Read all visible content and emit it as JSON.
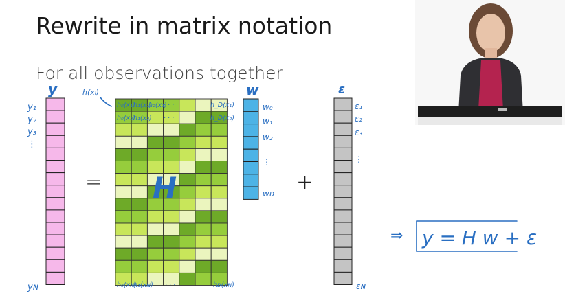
{
  "slide": {
    "title": "Rewrite in matrix notation",
    "subtitle": "For all observations together"
  },
  "vectors": {
    "y": {
      "name": "y",
      "labels": [
        "y₁",
        "y₂",
        "y₃",
        "⋮"
      ],
      "last_label": "y_N",
      "color": "#f6b8ea"
    },
    "w": {
      "name": "w",
      "labels": [
        "w₀",
        "w₁",
        "w₂",
        "⋮"
      ],
      "last_label": "w_D",
      "color": "#4db3e6"
    },
    "eps": {
      "name": "ε",
      "labels": [
        "ε₁",
        "ε₂",
        "ε₃",
        "⋮"
      ],
      "last_label": "ε_N",
      "color": "#c4c4c4"
    }
  },
  "matrix": {
    "name": "H",
    "row_label": "h(xᵢ)",
    "first_row": [
      "h₀(x₁)",
      "h₁(x₁)",
      "h₂(x₁)",
      "· · ·",
      "h_D(x₁)"
    ],
    "second_row": [
      "h₀(x₂)",
      "h₁(x₂)",
      "· · ·",
      "h_D(x₂)"
    ],
    "last_row": [
      "h₀(x_N)",
      "h₁(x_N)",
      "· · ·",
      "h_D(x_N)"
    ]
  },
  "operators": {
    "equals": "=",
    "plus": "+"
  },
  "result": {
    "arrow": "⇒",
    "equation": "y = H w + ε"
  }
}
